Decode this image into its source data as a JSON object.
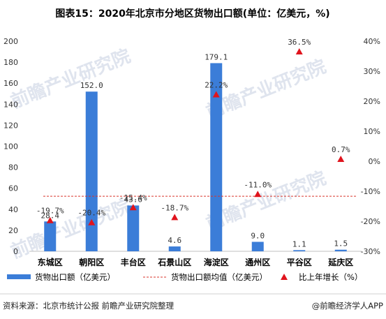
{
  "chart_data": {
    "type": "bar",
    "title": "图表15：2020年北京市分地区货物出口额(单位：亿美元，%)",
    "categories": [
      "东城区",
      "朝阳区",
      "丰台区",
      "石景山区",
      "海淀区",
      "通州区",
      "平谷区",
      "延庆区"
    ],
    "series": [
      {
        "name": "货物出口额（亿美元）",
        "type": "bar",
        "axis": "left",
        "values": [
          28.4,
          152.0,
          43.6,
          4.6,
          179.1,
          9.0,
          1.1,
          1.5
        ],
        "labels": [
          "28.4",
          "152.0",
          "43.6",
          "4.6",
          "179.1",
          "9.0",
          "1.1",
          "1.5"
        ],
        "color": "#3b7dd8"
      },
      {
        "name": "货物出口额均值（亿美元）",
        "type": "line",
        "axis": "left",
        "value": 52.4,
        "color": "#d9362b"
      },
      {
        "name": "比上年增长（%）",
        "type": "scatter",
        "axis": "right",
        "values": [
          -19.7,
          -20.4,
          -15.4,
          -18.7,
          22.2,
          -11.0,
          36.5,
          0.7
        ],
        "labels": [
          "-19.7%",
          "-20.4%",
          "-15.4%",
          "-18.7%",
          "22.2%",
          "-11.0%",
          "36.5%",
          "0.7%"
        ],
        "color": "#e0141d"
      }
    ],
    "left_axis": {
      "min": 0,
      "max": 200,
      "ticks": [
        0,
        20,
        40,
        60,
        80,
        100,
        120,
        140,
        160,
        180,
        200
      ]
    },
    "right_axis": {
      "min": -30,
      "max": 40,
      "ticks": [
        -30,
        -20,
        -10,
        0,
        10,
        20,
        30,
        40
      ],
      "tick_labels": [
        "-30%",
        "-20%",
        "-10%",
        "0%",
        "10%",
        "20%",
        "30%",
        "40%"
      ]
    },
    "grid": false,
    "legend_position": "bottom"
  },
  "watermark": "前瞻产业研究院",
  "footer": {
    "source": "资料来源：北京市统计公报 前瞻产业研究院整理",
    "brand": "@前瞻经济学人APP"
  }
}
